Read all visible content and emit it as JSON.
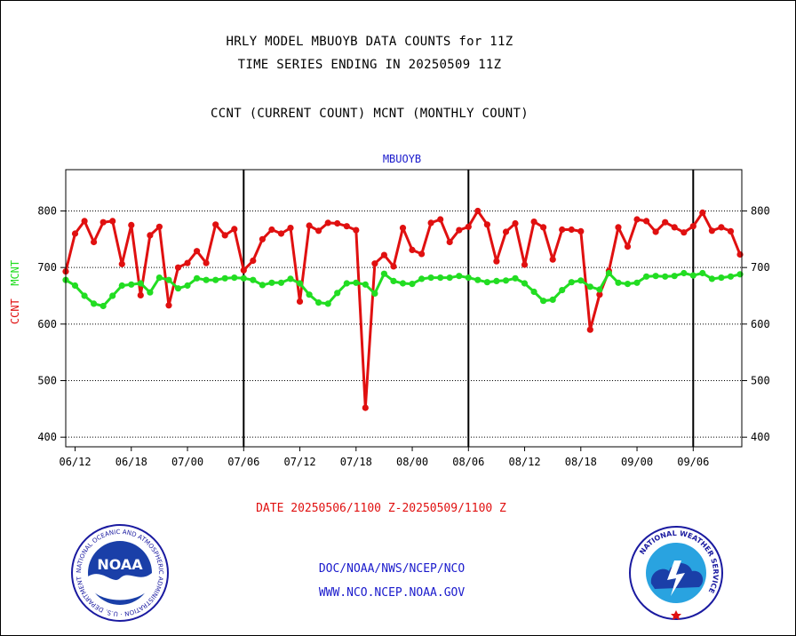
{
  "header": {
    "line1": "HRLY MODEL MBUOYB DATA COUNTS for 11Z",
    "line2": "TIME SERIES ENDING IN 20250509 11Z",
    "line3": "CCNT (CURRENT COUNT) MCNT (MONTHLY COUNT)"
  },
  "footer": {
    "date_range": "DATE 20250506/1100 Z-20250509/1100 Z",
    "org_path": "DOC/NOAA/NWS/NCEP/NCO",
    "website": "WWW.NCO.NCEP.NOAA.GOV"
  },
  "logos": {
    "noaa_text": "NOAA",
    "noaa_ring": "NATIONAL OCEANIC AND ATMOSPHERIC ADMINISTRATION · U.S. DEPARTMENT OF COMMERCE ·",
    "nws_ring": "NATIONAL WEATHER SERVICE"
  },
  "colors": {
    "ccnt": "#e01010",
    "mcnt": "#22dd22",
    "title": "#1a1acc",
    "date": "#e01010",
    "footer": "#1a1acc"
  },
  "chart_data": {
    "type": "line",
    "title": "MBUOYB",
    "ylabel_left": [
      {
        "text": "CCNT",
        "color": "#e01010"
      },
      {
        "text": "MCNT",
        "color": "#22dd22"
      }
    ],
    "ylim": [
      383,
      873
    ],
    "yticks": [
      400,
      500,
      600,
      700,
      800
    ],
    "grid": true,
    "x_ticks": [
      "06/12",
      "06/18",
      "07/00",
      "07/06",
      "07/12",
      "07/18",
      "08/00",
      "08/06",
      "08/12",
      "08/18",
      "09/00",
      "09/06"
    ],
    "x_tick_index": [
      1,
      7,
      13,
      19,
      25,
      31,
      37,
      43,
      49,
      55,
      61,
      67
    ],
    "day_boundaries_index": [
      19,
      43,
      67
    ],
    "n_points": 73,
    "series": [
      {
        "name": "CCNT",
        "color": "#e01010",
        "values": [
          693,
          760,
          782,
          745,
          780,
          782,
          706,
          775,
          651,
          757,
          772,
          633,
          700,
          708,
          729,
          708,
          776,
          757,
          768,
          695,
          712,
          750,
          767,
          760,
          770,
          640,
          774,
          765,
          779,
          778,
          773,
          766,
          452,
          707,
          722,
          702,
          770,
          731,
          724,
          779,
          785,
          745,
          766,
          772,
          800,
          776,
          711,
          763,
          778,
          705,
          781,
          771,
          714,
          767,
          767,
          764,
          590,
          652,
          694,
          771,
          737,
          785,
          782,
          763,
          780,
          771,
          762,
          773,
          797,
          765,
          771,
          764,
          723
        ]
      },
      {
        "name": "MCNT",
        "color": "#22dd22",
        "values": [
          678,
          668,
          650,
          636,
          632,
          650,
          668,
          670,
          672,
          656,
          682,
          678,
          663,
          668,
          681,
          678,
          678,
          681,
          682,
          681,
          678,
          669,
          673,
          673,
          680,
          672,
          652,
          638,
          636,
          655,
          672,
          673,
          670,
          654,
          689,
          676,
          672,
          671,
          680,
          682,
          682,
          682,
          685,
          682,
          678,
          674,
          676,
          677,
          681,
          672,
          657,
          641,
          643,
          660,
          674,
          677,
          666,
          661,
          690,
          673,
          671,
          673,
          684,
          685,
          684,
          685,
          690,
          686,
          690,
          680,
          682,
          684,
          688
        ]
      }
    ]
  }
}
